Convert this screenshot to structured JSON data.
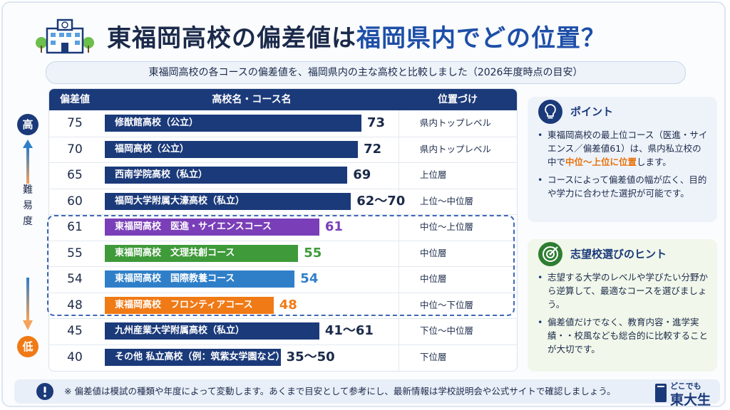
{
  "title": {
    "pre": "東福岡高校の偏差値は",
    "highlight": "福岡県内でどの位置？"
  },
  "subtitle": "東福岡高校の各コースの偏差値を、福岡県内の主な高校と比較しました（2026年度時点の目安）",
  "table": {
    "headers": [
      "偏差値",
      "高校名・コース名",
      "位置づけ"
    ]
  },
  "scale": {
    "high": "高",
    "low": "低",
    "label": [
      "難",
      "易",
      "度"
    ]
  },
  "colors": {
    "navy": "#1b3a7a",
    "purple": "#7a3fb8",
    "green": "#3f9a3a",
    "blue": "#2f7fc8",
    "orange": "#f07a16"
  },
  "chart_data": {
    "type": "bar",
    "orientation": "horizontal",
    "rows": [
      {
        "score": "75",
        "name": "修猷館高校（公立）",
        "value_label": "73",
        "value": 73,
        "rank": "県内トップレベル",
        "color": "#1b3a7a",
        "label_color": "#1b2a4a"
      },
      {
        "score": "70",
        "name": "福岡高校（公立）",
        "value_label": "72",
        "value": 72,
        "rank": "県内トップレベル",
        "color": "#1b3a7a",
        "label_color": "#1b2a4a"
      },
      {
        "score": "65",
        "name": "西南学院高校（私立）",
        "value_label": "69",
        "value": 69,
        "rank": "上位層",
        "color": "#1b3a7a",
        "label_color": "#1b2a4a"
      },
      {
        "score": "60",
        "name": "福岡大学附属大濠高校（私立）",
        "value_label": "62〜70",
        "value": 70,
        "rank": "上位〜中位層",
        "color": "#1b3a7a",
        "label_color": "#1b2a4a"
      },
      {
        "score": "61",
        "name": "東福岡高校　医進・サイエンスコース",
        "value_label": "61",
        "value": 61,
        "rank": "中位〜上位層",
        "color": "#7a3fb8",
        "label_color": "#7a3fb8"
      },
      {
        "score": "55",
        "name": "東福岡高校　文理共創コース",
        "value_label": "55",
        "value": 55,
        "rank": "中位層",
        "color": "#3f9a3a",
        "label_color": "#3f9a3a"
      },
      {
        "score": "54",
        "name": "東福岡高校　国際教養コース",
        "value_label": "54",
        "value": 54,
        "rank": "中位層",
        "color": "#2f7fc8",
        "label_color": "#2f7fc8"
      },
      {
        "score": "48",
        "name": "東福岡高校　フロンティアコース",
        "value_label": "48",
        "value": 48,
        "rank": "中位〜下位層",
        "color": "#f07a16",
        "label_color": "#f07a16"
      },
      {
        "score": "45",
        "name": "九州産業大学附属高校（私立）",
        "value_label": "41〜61",
        "value": 61,
        "rank": "下位〜中位層",
        "color": "#1b3a7a",
        "label_color": "#1b2a4a"
      },
      {
        "score": "40",
        "name": "その他 私立高校（例：筑紫女学園など）",
        "value_label": "35〜50",
        "value": 50,
        "rank": "下位層",
        "color": "#1b3a7a",
        "label_color": "#1b2a4a"
      }
    ]
  },
  "point": {
    "heading": "ポイント",
    "b1_pre": "東福岡高校の最上位コース（医進・サイエンス／偏差値61）は、県内私立校の中で",
    "b1_hl": "中位〜上位に位置",
    "b1_post": "します。",
    "b2": "コースによって偏差値の幅が広く、目的や学力に合わせた選択が可能です。"
  },
  "hint": {
    "heading": "志望校選びのヒント",
    "b1": "志望する大学のレベルや学びたい分野から逆算して、最適なコースを選びましょう。",
    "b2": "偏差値だけでなく、教育内容・進学実績・・校風なども総合的に比較することが大切です。"
  },
  "footer": {
    "note": "※ 偏差値は模試の種類や年度によって変動します。あくまで目安として参考にし、最新情報は学校説明会や公式サイトで確認しましょう。"
  },
  "logo": {
    "top": "どこでも",
    "bottom": "東大生"
  }
}
